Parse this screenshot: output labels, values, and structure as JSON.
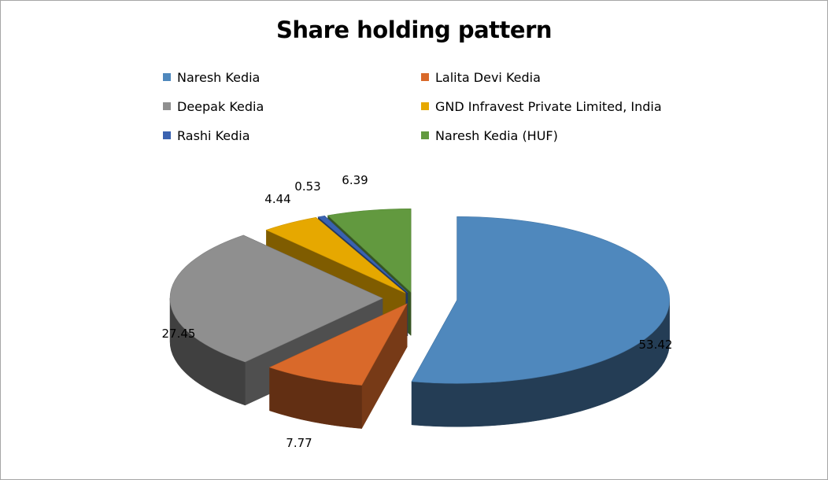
{
  "chart_data": {
    "type": "pie",
    "title": "Share holding pattern",
    "style": "3d-exploded",
    "legend_position": "top",
    "series": [
      {
        "name": "Naresh Kedia",
        "value": 53.42,
        "label": "53.42",
        "color": "#4f88bd"
      },
      {
        "name": "Lalita Devi Kedia",
        "value": 7.77,
        "label": "7.77",
        "color": "#d9692a"
      },
      {
        "name": "Deepak Kedia",
        "value": 27.45,
        "label": "27.45",
        "color": "#8f8f8f"
      },
      {
        "name": "GND Infravest Private Limited, India",
        "value": 4.44,
        "label": "4.44",
        "color": "#e6a800"
      },
      {
        "name": "Rashi Kedia",
        "value": 0.53,
        "label": "0.53",
        "color": "#3a62b0"
      },
      {
        "name": "Naresh Kedia (HUF)",
        "value": 6.39,
        "label": "6.39",
        "color": "#62993f"
      }
    ]
  }
}
